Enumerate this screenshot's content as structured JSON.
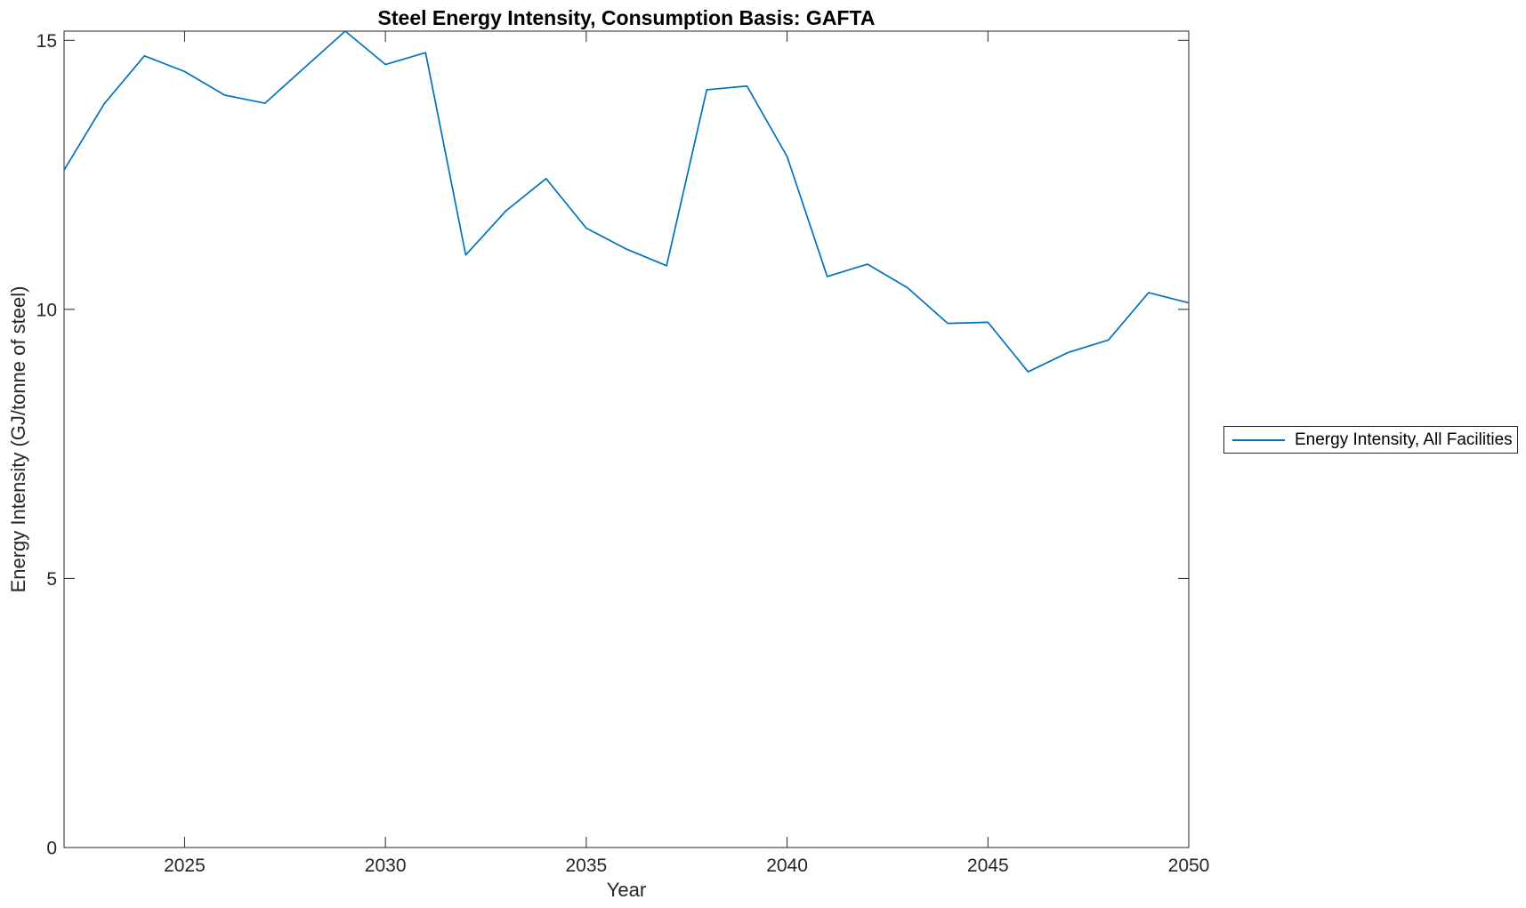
{
  "figure": {
    "background": "#ffffff"
  },
  "chart_data": {
    "type": "line",
    "title": "Steel Energy Intensity, Consumption Basis: GAFTA",
    "xlabel": "Year",
    "ylabel": "Energy Intensity (GJ/tonne of steel)",
    "grid": false,
    "box": true,
    "axis_color": "#262626",
    "line_color": "#0072BD",
    "xlim": [
      2022,
      2050
    ],
    "ylim": [
      0,
      15.17
    ],
    "xticks": [
      2025,
      2030,
      2035,
      2040,
      2045,
      2050
    ],
    "yticks": [
      0,
      5,
      10,
      15
    ],
    "x": [
      2022,
      2023,
      2024,
      2025,
      2026,
      2027,
      2028,
      2029,
      2030,
      2031,
      2032,
      2033,
      2034,
      2035,
      2036,
      2037,
      2038,
      2039,
      2040,
      2041,
      2042,
      2043,
      2044,
      2045,
      2046,
      2047,
      2048,
      2049,
      2050
    ],
    "series": [
      {
        "name": "Energy Intensity, All Facilities",
        "color": "#0072BD",
        "values": [
          12.59,
          13.82,
          14.71,
          14.42,
          13.98,
          13.83,
          14.5,
          15.17,
          14.55,
          14.77,
          11.01,
          11.83,
          12.43,
          11.51,
          11.12,
          10.81,
          14.08,
          14.15,
          12.84,
          10.61,
          10.84,
          10.4,
          9.74,
          9.76,
          8.84,
          9.2,
          9.43,
          10.31,
          10.12
        ]
      }
    ],
    "legend": {
      "position": "right-outside",
      "entries": [
        {
          "label": "Energy Intensity, All Facilities",
          "color": "#0072BD"
        }
      ]
    }
  }
}
